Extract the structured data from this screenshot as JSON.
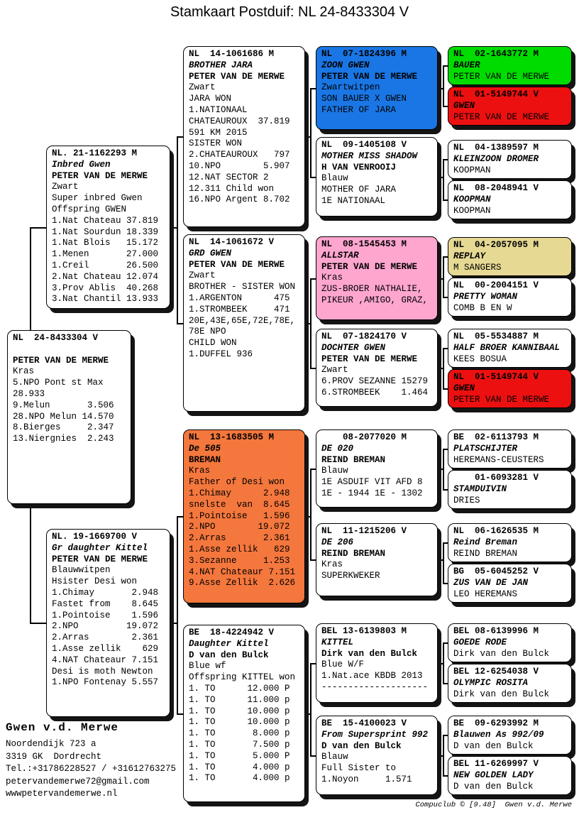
{
  "title": "Stamkaart Postduif: NL  24-8433304 V",
  "pedigree": {
    "boxes": [
      {
        "id": "subject",
        "lines": [
          {
            "s": "b",
            "t": "NL  24-8433304 V"
          },
          {
            "s": "n",
            "t": " "
          },
          {
            "s": "b",
            "t": "PETER VAN DE MERWE"
          },
          {
            "s": "n",
            "t": "Kras"
          },
          {
            "s": "n",
            "t": "5.NPO Pont st Max"
          },
          {
            "s": "n",
            "t": "28.933"
          },
          {
            "s": "n",
            "t": "9.Melun       3.506"
          },
          {
            "s": "n",
            "t": "28.NPO Melun 14.570"
          },
          {
            "s": "n",
            "t": "8.Bierges     2.347"
          },
          {
            "s": "n",
            "t": "13.Niergnies  2.243"
          }
        ]
      },
      {
        "id": "sire",
        "lines": [
          {
            "s": "b",
            "t": "NL. 21-1162293 M"
          },
          {
            "s": "i",
            "t": "Inbred Gwen"
          },
          {
            "s": "b",
            "t": "PETER VAN DE MERWE"
          },
          {
            "s": "n",
            "t": "Zwart"
          },
          {
            "s": "n",
            "t": "Super inbred Gwen"
          },
          {
            "s": "n",
            "t": "Offspring GWEN"
          },
          {
            "s": "n",
            "t": "1.Nat Chateau 37.819"
          },
          {
            "s": "n",
            "t": "1.Nat Sourdun 18.339"
          },
          {
            "s": "n",
            "t": "1.Nat Blois   15.172"
          },
          {
            "s": "n",
            "t": "1.Menen       27.000"
          },
          {
            "s": "n",
            "t": "1.Creil       26.500"
          },
          {
            "s": "n",
            "t": "2.Nat Chateau 12.074"
          },
          {
            "s": "n",
            "t": "3.Prov Ablis  40.268"
          },
          {
            "s": "n",
            "t": "3.Nat Chantil 13.933"
          }
        ]
      },
      {
        "id": "dam",
        "lines": [
          {
            "s": "b",
            "t": "NL. 19-1669700 V"
          },
          {
            "s": "i",
            "t": "Gr daughter Kittel"
          },
          {
            "s": "b",
            "t": "PETER VAN DE MERWE"
          },
          {
            "s": "n",
            "t": "Blauwwitpen"
          },
          {
            "s": "n",
            "t": "Hsister Desi won"
          },
          {
            "s": "n",
            "t": "1.Chimay       2.948"
          },
          {
            "s": "n",
            "t": "Fastet from    8.645"
          },
          {
            "s": "n",
            "t": "1.Pointoise    1.596"
          },
          {
            "s": "n",
            "t": "2.NPO         19.072"
          },
          {
            "s": "n",
            "t": "2.Arras        2.361"
          },
          {
            "s": "n",
            "t": "1.Asse zellik    629"
          },
          {
            "s": "n",
            "t": "4.NAT Chateaur 7.151"
          },
          {
            "s": "n",
            "t": "Desi is moth Newton"
          },
          {
            "s": "n",
            "t": "1.NPO Fontenay 5.557"
          }
        ]
      },
      {
        "id": "g3_1",
        "lines": [
          {
            "s": "b",
            "t": "NL  14-1061686 M"
          },
          {
            "s": "i",
            "t": "BROTHER JARA"
          },
          {
            "s": "b",
            "t": "PETER VAN DE MERWE"
          },
          {
            "s": "n",
            "t": "Zwart"
          },
          {
            "s": "n",
            "t": "JARA WON"
          },
          {
            "s": "n",
            "t": "1.NATIONAAL"
          },
          {
            "s": "n",
            "t": "CHATEAUROUX  37.819"
          },
          {
            "s": "n",
            "t": "591 KM 2015"
          },
          {
            "s": "n",
            "t": "SISTER WON"
          },
          {
            "s": "n",
            "t": "2.CHATEAUROUX   797"
          },
          {
            "s": "n",
            "t": "10.NPO        5.907"
          },
          {
            "s": "n",
            "t": "12.NAT SECTOR 2"
          },
          {
            "s": "n",
            "t": "12.311 Child won"
          },
          {
            "s": "n",
            "t": "16.NPO Argent 8.702"
          }
        ]
      },
      {
        "id": "g3_2",
        "lines": [
          {
            "s": "b",
            "t": "NL  14-1061672 V"
          },
          {
            "s": "i",
            "t": "GRD GWEN"
          },
          {
            "s": "b",
            "t": "PETER VAN DE MERWE"
          },
          {
            "s": "n",
            "t": "Zwart"
          },
          {
            "s": "n",
            "t": "BROTHER - SISTER WON"
          },
          {
            "s": "n",
            "t": "1.ARGENTON      475"
          },
          {
            "s": "n",
            "t": "1.STROMBEEK     471"
          },
          {
            "s": "n",
            "t": "20E,43E,65E,72E,78E,"
          },
          {
            "s": "n",
            "t": "78E NPO"
          },
          {
            "s": "n",
            "t": "CHILD WON"
          },
          {
            "s": "n",
            "t": "1.DUFFEL 936"
          }
        ]
      },
      {
        "id": "g3_3",
        "fill": "#f4773d",
        "lines": [
          {
            "s": "b",
            "t": "NL  13-1683505 M"
          },
          {
            "s": "i",
            "t": "De 505"
          },
          {
            "s": "b",
            "t": "BREMAN"
          },
          {
            "s": "n",
            "t": "Kras"
          },
          {
            "s": "n",
            "t": "Father of Desi won"
          },
          {
            "s": "n",
            "t": "1.Chimay      2.948"
          },
          {
            "s": "n",
            "t": "snelste  van  8.645"
          },
          {
            "s": "n",
            "t": "1.Pointoise   1.596"
          },
          {
            "s": "n",
            "t": "2.NPO        19.072"
          },
          {
            "s": "n",
            "t": "2.Arras       2.361"
          },
          {
            "s": "n",
            "t": "1.Asse zellik   629"
          },
          {
            "s": "n",
            "t": "3.Sezanne     1.253"
          },
          {
            "s": "n",
            "t": "4.NAT Chateaur 7.151"
          },
          {
            "s": "n",
            "t": "9.Asse Zellik  2.626"
          }
        ]
      },
      {
        "id": "g3_4",
        "lines": [
          {
            "s": "b",
            "t": "BE  18-4224942 V"
          },
          {
            "s": "i",
            "t": "Daughter Kittel"
          },
          {
            "s": "b",
            "t": "D van den Bulck"
          },
          {
            "s": "n",
            "t": "Blue wf"
          },
          {
            "s": "n",
            "t": "Offspring KITTEL won"
          },
          {
            "s": "n",
            "t": "1. TO      12.000 P"
          },
          {
            "s": "n",
            "t": "1. TO      11.000 p"
          },
          {
            "s": "n",
            "t": "1. TO      10.000 p"
          },
          {
            "s": "n",
            "t": "1. TO      10.000 p"
          },
          {
            "s": "n",
            "t": "1. TO       8.000 p"
          },
          {
            "s": "n",
            "t": "1. TO       7.500 p"
          },
          {
            "s": "n",
            "t": "1. TO       5.000 P"
          },
          {
            "s": "n",
            "t": "1. TO       4.000 p"
          },
          {
            "s": "n",
            "t": "1. TO       4.000 p"
          }
        ]
      },
      {
        "id": "g4_1",
        "fill": "#1a76e4",
        "lines": [
          {
            "s": "b",
            "t": "NL  07-1824396 M"
          },
          {
            "s": "i",
            "t": "ZOON GWEN"
          },
          {
            "s": "b",
            "t": "PETER VAN DE MERWE"
          },
          {
            "s": "n",
            "t": "Zwartwitpen"
          },
          {
            "s": "n",
            "t": "SON BAUER X GWEN"
          },
          {
            "s": "n",
            "t": "FATHER OF JARA"
          }
        ]
      },
      {
        "id": "g4_2",
        "lines": [
          {
            "s": "b",
            "t": "NL  09-1405108 V"
          },
          {
            "s": "i",
            "t": "MOTHER MISS SHADOW"
          },
          {
            "s": "b",
            "t": "H VAN VENROOIJ"
          },
          {
            "s": "n",
            "t": "Blauw"
          },
          {
            "s": "n",
            "t": "MOTHER OF JARA"
          },
          {
            "s": "n",
            "t": "1E NATIONAAL"
          }
        ]
      },
      {
        "id": "g4_3",
        "fill": "#ffa6cf",
        "lines": [
          {
            "s": "b",
            "t": "NL  08-1545453 M"
          },
          {
            "s": "i",
            "t": "ALLSTAR"
          },
          {
            "s": "b",
            "t": "PETER VAN DE MERWE"
          },
          {
            "s": "n",
            "t": "Kras"
          },
          {
            "s": "n",
            "t": "ZUS-BROER NATHALIE,"
          },
          {
            "s": "n",
            "t": "PIKEUR ,AMIGO, GRAZ,"
          }
        ]
      },
      {
        "id": "g4_4",
        "lines": [
          {
            "s": "b",
            "t": "NL  07-1824170 V"
          },
          {
            "s": "i",
            "t": "DOCHTER GWEN"
          },
          {
            "s": "b",
            "t": "PETER VAN DE MERWE"
          },
          {
            "s": "n",
            "t": "Zwart"
          },
          {
            "s": "n",
            "t": "6.PROV SEZANNE 15279"
          },
          {
            "s": "n",
            "t": "6.STROMBEEK    1.464"
          }
        ]
      },
      {
        "id": "g4_5",
        "lines": [
          {
            "s": "b",
            "t": "    08-2077020 M"
          },
          {
            "s": "i",
            "t": "DE 020"
          },
          {
            "s": "b",
            "t": "REIND BREMAN"
          },
          {
            "s": "n",
            "t": "Blauw"
          },
          {
            "s": "n",
            "t": "1E ASDUIF VIT AFD 8"
          },
          {
            "s": "n",
            "t": "1E - 1944 1E - 1302"
          }
        ]
      },
      {
        "id": "g4_6",
        "lines": [
          {
            "s": "b",
            "t": "NL  11-1215206 V"
          },
          {
            "s": "i",
            "t": "DE 206"
          },
          {
            "s": "b",
            "t": "REIND BREMAN"
          },
          {
            "s": "n",
            "t": "Kras"
          },
          {
            "s": "n",
            "t": "SUPERKWEKER"
          }
        ]
      },
      {
        "id": "g4_7",
        "lines": [
          {
            "s": "b",
            "t": "BEL 13-6139803 M"
          },
          {
            "s": "i",
            "t": "KITTEL"
          },
          {
            "s": "b",
            "t": "Dirk van den Bulck"
          },
          {
            "s": "n",
            "t": "Blue W/F"
          },
          {
            "s": "n",
            "t": "1.Nat.ace KBDB 2013"
          },
          {
            "s": "n",
            "t": "--------------------"
          }
        ]
      },
      {
        "id": "g4_8",
        "lines": [
          {
            "s": "b",
            "t": "BE  15-4100023 V"
          },
          {
            "s": "i",
            "t": "From Supersprint 992"
          },
          {
            "s": "b",
            "t": "D van den Bulck"
          },
          {
            "s": "n",
            "t": "Blauw"
          },
          {
            "s": "n",
            "t": "Full Sister to"
          },
          {
            "s": "n",
            "t": "1.Noyon     1.571"
          }
        ]
      },
      {
        "id": "g5_1",
        "fill": "#00dc00",
        "lines": [
          {
            "s": "b",
            "t": "NL  02-1643772 M"
          },
          {
            "s": "i",
            "t": "BAUER"
          },
          {
            "s": "n",
            "t": "PETER VAN DE MERWE"
          }
        ]
      },
      {
        "id": "g5_2",
        "fill": "#ec1010",
        "lines": [
          {
            "s": "b",
            "t": "NL  01-5149744 V"
          },
          {
            "s": "i",
            "t": "GWEN"
          },
          {
            "s": "n",
            "t": "PETER VAN DE MERWE"
          }
        ]
      },
      {
        "id": "g5_3",
        "lines": [
          {
            "s": "b",
            "t": "NL  04-1389597 M"
          },
          {
            "s": "i",
            "t": "KLEINZOON DROMER"
          },
          {
            "s": "n",
            "t": "KOOPMAN"
          }
        ]
      },
      {
        "id": "g5_4",
        "lines": [
          {
            "s": "b",
            "t": "NL  08-2048941 V"
          },
          {
            "s": "i",
            "t": "KOOPMAN"
          },
          {
            "s": "n",
            "t": "KOOPMAN"
          }
        ]
      },
      {
        "id": "g5_5",
        "fill": "#e6d994",
        "lines": [
          {
            "s": "b",
            "t": "NL  04-2057095 M"
          },
          {
            "s": "i",
            "t": "REPLAY"
          },
          {
            "s": "n",
            "t": "M SANGERS"
          }
        ]
      },
      {
        "id": "g5_6",
        "lines": [
          {
            "s": "b",
            "t": "NL  00-2004151 V"
          },
          {
            "s": "i",
            "t": "PRETTY WOMAN"
          },
          {
            "s": "n",
            "t": "COMB B EN W"
          }
        ]
      },
      {
        "id": "g5_7",
        "lines": [
          {
            "s": "b",
            "t": "NL  05-5534887 M"
          },
          {
            "s": "i",
            "t": "HALF BROER KANNIBAAL"
          },
          {
            "s": "n",
            "t": "KEES BOSUA"
          }
        ]
      },
      {
        "id": "g5_8",
        "fill": "#ec1010",
        "lines": [
          {
            "s": "b",
            "t": "NL  01-5149744 V"
          },
          {
            "s": "i",
            "t": "GWEN"
          },
          {
            "s": "n",
            "t": "PETER VAN DE MERWE"
          }
        ]
      },
      {
        "id": "g5_9",
        "lines": [
          {
            "s": "b",
            "t": "BE  02-6113793 M"
          },
          {
            "s": "i",
            "t": "PLATSCHIJTER"
          },
          {
            "s": "n",
            "t": "HEREMANS-CEUSTERS"
          }
        ]
      },
      {
        "id": "g5_10",
        "lines": [
          {
            "s": "b",
            "t": "    01-6093281 V"
          },
          {
            "s": "i",
            "t": "STAMDUIVIN"
          },
          {
            "s": "n",
            "t": "DRIES"
          }
        ]
      },
      {
        "id": "g5_11",
        "lines": [
          {
            "s": "b",
            "t": "NL  06-1626535 M"
          },
          {
            "s": "i",
            "t": "Reind Breman"
          },
          {
            "s": "n",
            "t": "REIND BREMAN"
          }
        ]
      },
      {
        "id": "g5_12",
        "lines": [
          {
            "s": "b",
            "t": "BG  05-6045252 V"
          },
          {
            "s": "i",
            "t": "ZUS VAN DE JAN"
          },
          {
            "s": "n",
            "t": "LEO HEREMANS"
          }
        ]
      },
      {
        "id": "g5_13",
        "lines": [
          {
            "s": "b",
            "t": "BEL 08-6139996 M"
          },
          {
            "s": "i",
            "t": "GOEDE RODE"
          },
          {
            "s": "n",
            "t": "Dirk van den Bulck"
          }
        ]
      },
      {
        "id": "g5_14",
        "lines": [
          {
            "s": "b",
            "t": "BEL 12-6254038 V"
          },
          {
            "s": "i",
            "t": "OLYMPIC ROSITA"
          },
          {
            "s": "n",
            "t": "Dirk van den Bulck"
          }
        ]
      },
      {
        "id": "g5_15",
        "lines": [
          {
            "s": "b",
            "t": "BE  09-6293992 M"
          },
          {
            "s": "i",
            "t": "Blauwen As 992/09"
          },
          {
            "s": "n",
            "t": "D van den Bulck"
          }
        ]
      },
      {
        "id": "g5_16",
        "lines": [
          {
            "s": "b",
            "t": "BEL 11-6269997 V"
          },
          {
            "s": "i",
            "t": "NEW GOLDEN LADY"
          },
          {
            "s": "n",
            "t": "D van den Bulck"
          }
        ]
      }
    ]
  },
  "contact": {
    "name": "Gwen v.d. Merwe",
    "lines": [
      "Noordendijk 723 a",
      "3319 GK  Dordrecht",
      "Tel.:+31786228527 / +31612763275",
      "petervandemerwe72@gmail.com",
      "wwwpetervandemerwe.nl"
    ]
  },
  "footer": {
    "credit": "Compuclub © [9.48]  Gwen v.d. Merwe"
  },
  "colors": {
    "highlight_blue": "#1a76e4",
    "highlight_pink": "#ffa6cf",
    "highlight_orange": "#f4773d",
    "highlight_green": "#00dc00",
    "highlight_red": "#ec1010",
    "highlight_tan": "#e6d994"
  }
}
